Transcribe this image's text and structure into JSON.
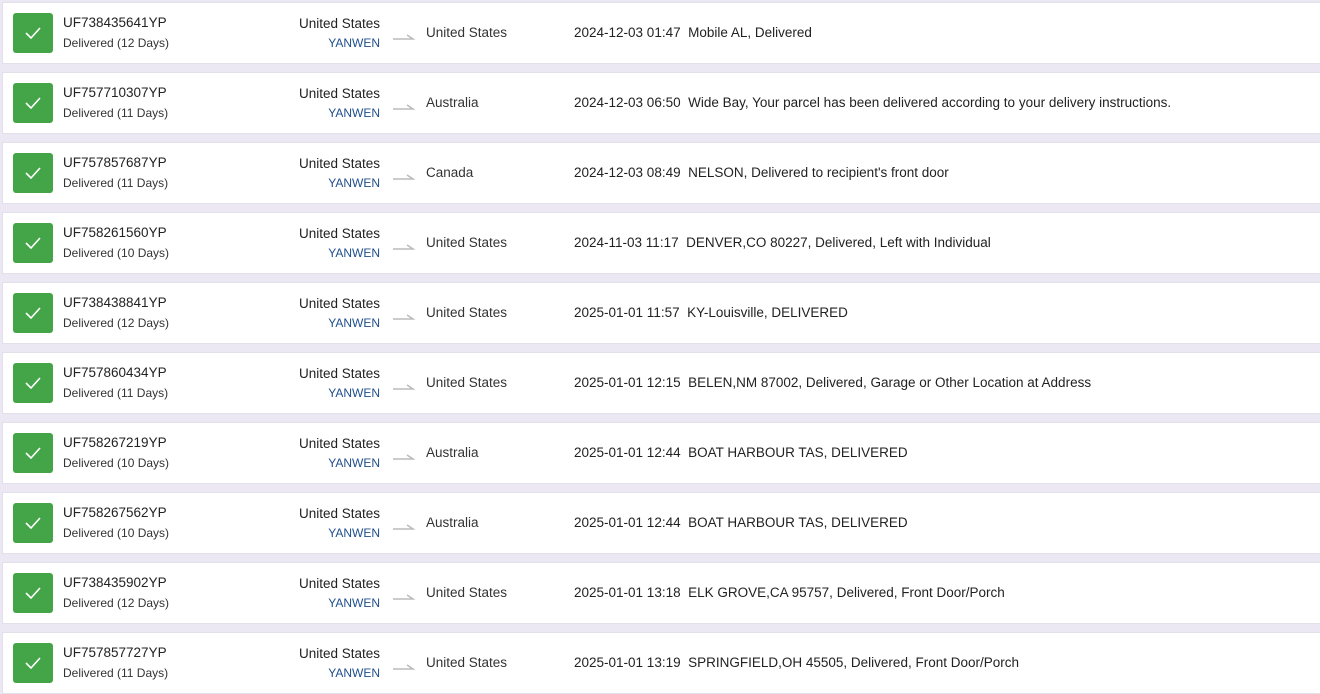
{
  "colors": {
    "delivered": "#43a548",
    "carrier": "#1f4e8c"
  },
  "rows": [
    {
      "number": "UF738435641YP",
      "status": "Delivered (12 Days)",
      "origin": "United States",
      "carrier": "YANWEN",
      "destination": "United States",
      "time": "2024-12-03 01:47",
      "event": "Mobile AL, Delivered"
    },
    {
      "number": "UF757710307YP",
      "status": "Delivered (11 Days)",
      "origin": "United States",
      "carrier": "YANWEN",
      "destination": "Australia",
      "time": "2024-12-03 06:50",
      "event": "Wide Bay, Your parcel has been delivered according to your delivery instructions."
    },
    {
      "number": "UF757857687YP",
      "status": "Delivered (11 Days)",
      "origin": "United States",
      "carrier": "YANWEN",
      "destination": "Canada",
      "time": "2024-12-03 08:49",
      "event": "NELSON, Delivered to recipient's front door"
    },
    {
      "number": "UF758261560YP",
      "status": "Delivered (10 Days)",
      "origin": "United States",
      "carrier": "YANWEN",
      "destination": "United States",
      "time": "2024-11-03 11:17",
      "event": "DENVER,CO 80227, Delivered, Left with Individual"
    },
    {
      "number": "UF738438841YP",
      "status": "Delivered (12 Days)",
      "origin": "United States",
      "carrier": "YANWEN",
      "destination": "United States",
      "time": "2025-01-01 11:57",
      "event": "KY-Louisville, DELIVERED"
    },
    {
      "number": "UF757860434YP",
      "status": "Delivered (11 Days)",
      "origin": "United States",
      "carrier": "YANWEN",
      "destination": "United States",
      "time": "2025-01-01 12:15",
      "event": "BELEN,NM 87002, Delivered, Garage or Other Location at Address"
    },
    {
      "number": "UF758267219YP",
      "status": "Delivered (10 Days)",
      "origin": "United States",
      "carrier": "YANWEN",
      "destination": "Australia",
      "time": "2025-01-01 12:44",
      "event": "BOAT HARBOUR TAS, DELIVERED"
    },
    {
      "number": "UF758267562YP",
      "status": "Delivered (10 Days)",
      "origin": "United States",
      "carrier": "YANWEN",
      "destination": "Australia",
      "time": "2025-01-01 12:44",
      "event": "BOAT HARBOUR TAS, DELIVERED"
    },
    {
      "number": "UF738435902YP",
      "status": "Delivered (12 Days)",
      "origin": "United States",
      "carrier": "YANWEN",
      "destination": "United States",
      "time": "2025-01-01 13:18",
      "event": "ELK GROVE,CA 95757, Delivered, Front Door/Porch"
    },
    {
      "number": "UF757857727YP",
      "status": "Delivered (11 Days)",
      "origin": "United States",
      "carrier": "YANWEN",
      "destination": "United States",
      "time": "2025-01-01 13:19",
      "event": "SPRINGFIELD,OH 45505, Delivered, Front Door/Porch"
    }
  ]
}
